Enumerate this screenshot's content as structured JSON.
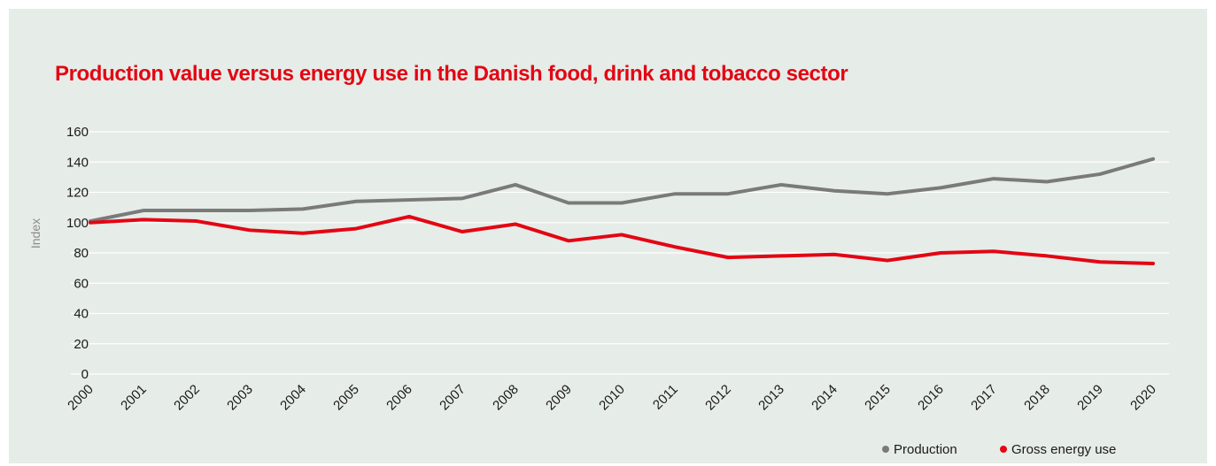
{
  "chart_data": {
    "type": "line",
    "title": "Production value versus energy use in the Danish food, drink and tobacco sector",
    "ylabel": "Index",
    "xlabel": "",
    "ylim": [
      0,
      160
    ],
    "yticks": [
      0,
      20,
      40,
      60,
      80,
      100,
      120,
      140,
      160
    ],
    "grid": true,
    "legend_position": "bottom-right",
    "categories": [
      "2000",
      "2001",
      "2002",
      "2003",
      "2004",
      "2005",
      "2006",
      "2007",
      "2008",
      "2009",
      "2010",
      "2011",
      "2012",
      "2013",
      "2014",
      "2015",
      "2016",
      "2017",
      "2018",
      "2019",
      "2020"
    ],
    "series": [
      {
        "name": "Production",
        "color": "#7a7a7a",
        "values": [
          101,
          108,
          108,
          108,
          109,
          114,
          115,
          116,
          125,
          113,
          113,
          119,
          119,
          125,
          121,
          119,
          123,
          129,
          127,
          132,
          142
        ]
      },
      {
        "name": "Gross energy use",
        "color": "#e30613",
        "values": [
          100,
          102,
          101,
          95,
          93,
          96,
          104,
          94,
          99,
          88,
          92,
          84,
          77,
          78,
          79,
          75,
          80,
          81,
          78,
          74,
          73
        ]
      }
    ]
  },
  "colors": {
    "background": "#e6ece8",
    "title": "#e30613",
    "gridline": "#ffffff"
  }
}
